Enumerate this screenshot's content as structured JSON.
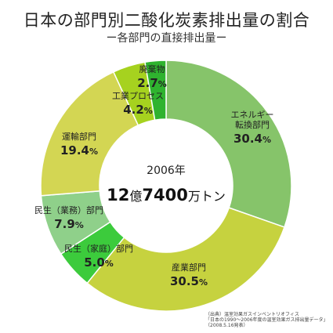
{
  "header": {
    "title": "日本の部門別二酸化炭素排出量の割合",
    "subtitle": "ー各部門の直接排出量ー"
  },
  "center": {
    "year": "2006年",
    "total_num1": "12",
    "total_unit1": "億",
    "total_num2": "7400",
    "total_unit2": "万トン"
  },
  "source": {
    "line1": "（出典）温室効果ガスインベントリオフィス",
    "line2": "「日本の1990～2006年度の温室効果ガス排出量データ」",
    "line3": "（2008.5.16発表）"
  },
  "chart_data": {
    "type": "pie",
    "title": "日本の部門別二酸化炭素排出量の割合",
    "subtitle": "ー各部門の直接排出量ー",
    "total_label": "12億7400万トン",
    "year": "2006年",
    "slices": [
      {
        "label": "エネルギー転換部門",
        "label_lines": [
          "エネルギー",
          "転換部門"
        ],
        "value": 30.4,
        "display": "30.4",
        "color": "#86c46a"
      },
      {
        "label": "産業部門",
        "label_lines": [
          "産業部門"
        ],
        "value": 30.5,
        "display": "30.5",
        "color": "#c6d23f"
      },
      {
        "label": "民生（家庭）部門",
        "label_lines": [
          "民生（家庭）部門"
        ],
        "value": 5.0,
        "display": "5.0",
        "color": "#3ccb3c"
      },
      {
        "label": "民生（業務）部門",
        "label_lines": [
          "民生（業務）部門"
        ],
        "value": 7.9,
        "display": "7.9",
        "color": "#8fd08a"
      },
      {
        "label": "運輸部門",
        "label_lines": [
          "運輸部門"
        ],
        "value": 19.4,
        "display": "19.4",
        "color": "#d3d653"
      },
      {
        "label": "工業プロセス",
        "label_lines": [
          "工業プロセス"
        ],
        "value": 4.2,
        "display": "4.2",
        "color": "#a6d21f"
      },
      {
        "label": "廃棄物",
        "label_lines": [
          "廃棄物"
        ],
        "value": 2.7,
        "display": "2.7",
        "color": "#2fb32f"
      }
    ]
  }
}
